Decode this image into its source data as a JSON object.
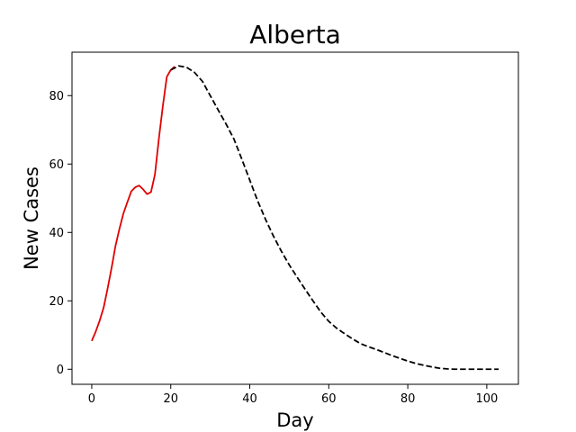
{
  "chart_data": {
    "type": "line",
    "title": "Alberta",
    "xlabel": "Day",
    "ylabel": "New Cases",
    "xlim": [
      -5,
      108
    ],
    "ylim": [
      -4.4,
      92.7
    ],
    "xticks": [
      0,
      20,
      40,
      60,
      80,
      100
    ],
    "yticks": [
      0,
      20,
      40,
      60,
      80
    ],
    "grid": false,
    "series": [
      {
        "style": "solid",
        "color": "#e00000",
        "x": [
          0,
          1,
          2,
          3,
          4,
          5,
          6,
          7,
          8,
          9,
          10,
          11,
          12,
          13,
          14,
          15,
          16,
          17,
          18,
          19,
          20,
          21
        ],
        "y": [
          8.3,
          11.0,
          14.2,
          18.0,
          23.5,
          29.5,
          36.0,
          41.0,
          45.5,
          48.8,
          52.0,
          53.2,
          53.7,
          52.6,
          51.2,
          51.8,
          57.0,
          67.5,
          77.0,
          85.5,
          87.5,
          88.5
        ]
      },
      {
        "style": "dashed",
        "color": "#000000",
        "x": [
          20,
          22,
          24,
          26,
          28,
          30,
          32,
          34,
          36,
          38,
          40,
          42,
          44,
          46,
          48,
          50,
          52,
          54,
          56,
          58,
          60,
          62,
          64,
          66,
          68,
          70,
          72,
          74,
          76,
          78,
          80,
          82,
          84,
          86,
          88,
          90,
          92,
          94,
          96,
          98,
          100,
          103
        ],
        "y": [
          87.5,
          88.7,
          88.3,
          86.8,
          84.2,
          80.0,
          75.8,
          71.7,
          67.3,
          61.4,
          55.3,
          49.2,
          43.8,
          38.9,
          34.5,
          30.5,
          26.9,
          23.4,
          20.0,
          16.7,
          14.0,
          12.0,
          10.4,
          8.9,
          7.5,
          6.6,
          5.8,
          4.9,
          4.0,
          3.2,
          2.4,
          1.7,
          1.2,
          0.7,
          0.3,
          0.1,
          0.0,
          0.0,
          0.0,
          0.0,
          0.0,
          0.0
        ]
      }
    ]
  }
}
